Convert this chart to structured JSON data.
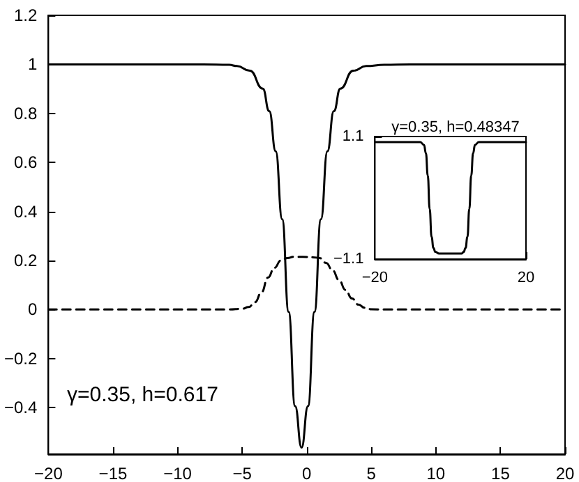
{
  "chart_data": [
    {
      "type": "line",
      "xlim": [
        -20,
        20
      ],
      "xticks": [
        -20,
        -15,
        -10,
        -5,
        0,
        5,
        10,
        15,
        20
      ],
      "ylim": [
        -0.59,
        1.2
      ],
      "yticks": [
        -0.4,
        -0.2,
        0,
        0.2,
        0.4,
        0.6,
        0.8,
        1,
        1.2
      ],
      "grid": false,
      "marker": "none",
      "annotations": [
        "γ=0.35, h=0.617"
      ],
      "series": [
        {
          "color": "#000000",
          "line_style": "solid",
          "x": [
            -20,
            -8,
            -6,
            -5.4,
            -4.4,
            -3.4,
            -2.9,
            -2.4,
            -1.9,
            -1.4,
            -0.9,
            -0.4,
            0.1,
            0.6,
            1.1,
            1.6,
            2.1,
            2.6,
            3.6,
            4.6,
            6,
            8,
            20
          ],
          "values": [
            1,
            1,
            0.998,
            0.993,
            0.974,
            0.901,
            0.809,
            0.645,
            0.368,
            -0.01,
            -0.394,
            -0.563,
            -0.394,
            -0.01,
            0.368,
            0.645,
            0.809,
            0.901,
            0.974,
            0.993,
            0.998,
            1,
            1
          ]
        },
        {
          "color": "#000000",
          "line_style": "dashed",
          "x": [
            -20,
            -6,
            -5,
            -4.5,
            -4,
            -3.5,
            -3,
            -2.5,
            -2,
            -1.5,
            -1,
            -0.3,
            0.5,
            1,
            1.5,
            2,
            2.5,
            3,
            3.5,
            4,
            4.5,
            5,
            6,
            20
          ],
          "values": [
            0,
            0,
            0.003,
            0.01,
            0.03,
            0.07,
            0.13,
            0.17,
            0.2,
            0.21,
            0.215,
            0.215,
            0.213,
            0.21,
            0.19,
            0.16,
            0.12,
            0.08,
            0.045,
            0.02,
            0.007,
            0.001,
            0,
            0
          ]
        }
      ]
    },
    {
      "type": "line",
      "title": "γ=0.35, h=0.48347",
      "xlim": [
        -20,
        20
      ],
      "xticks": [
        -20,
        20
      ],
      "ylim": [
        -1.1,
        1.1
      ],
      "yticks": [
        -1.1,
        1.1
      ],
      "grid": false,
      "marker": "none",
      "series": [
        {
          "color": "#000000",
          "line_style": "solid",
          "x": [
            -20,
            -8,
            -7,
            -6.5,
            -6,
            -5.5,
            -5,
            -4.5,
            -4,
            -3,
            3,
            3.5,
            4,
            4.5,
            5,
            5.5,
            6,
            6.5,
            7.5,
            20
          ],
          "values": [
            1,
            1,
            0.95,
            0.8,
            0.4,
            -0.2,
            -0.7,
            -0.9,
            -0.97,
            -1,
            -1,
            -0.97,
            -0.9,
            -0.7,
            -0.2,
            0.4,
            0.8,
            0.95,
            1,
            1
          ]
        }
      ]
    }
  ]
}
